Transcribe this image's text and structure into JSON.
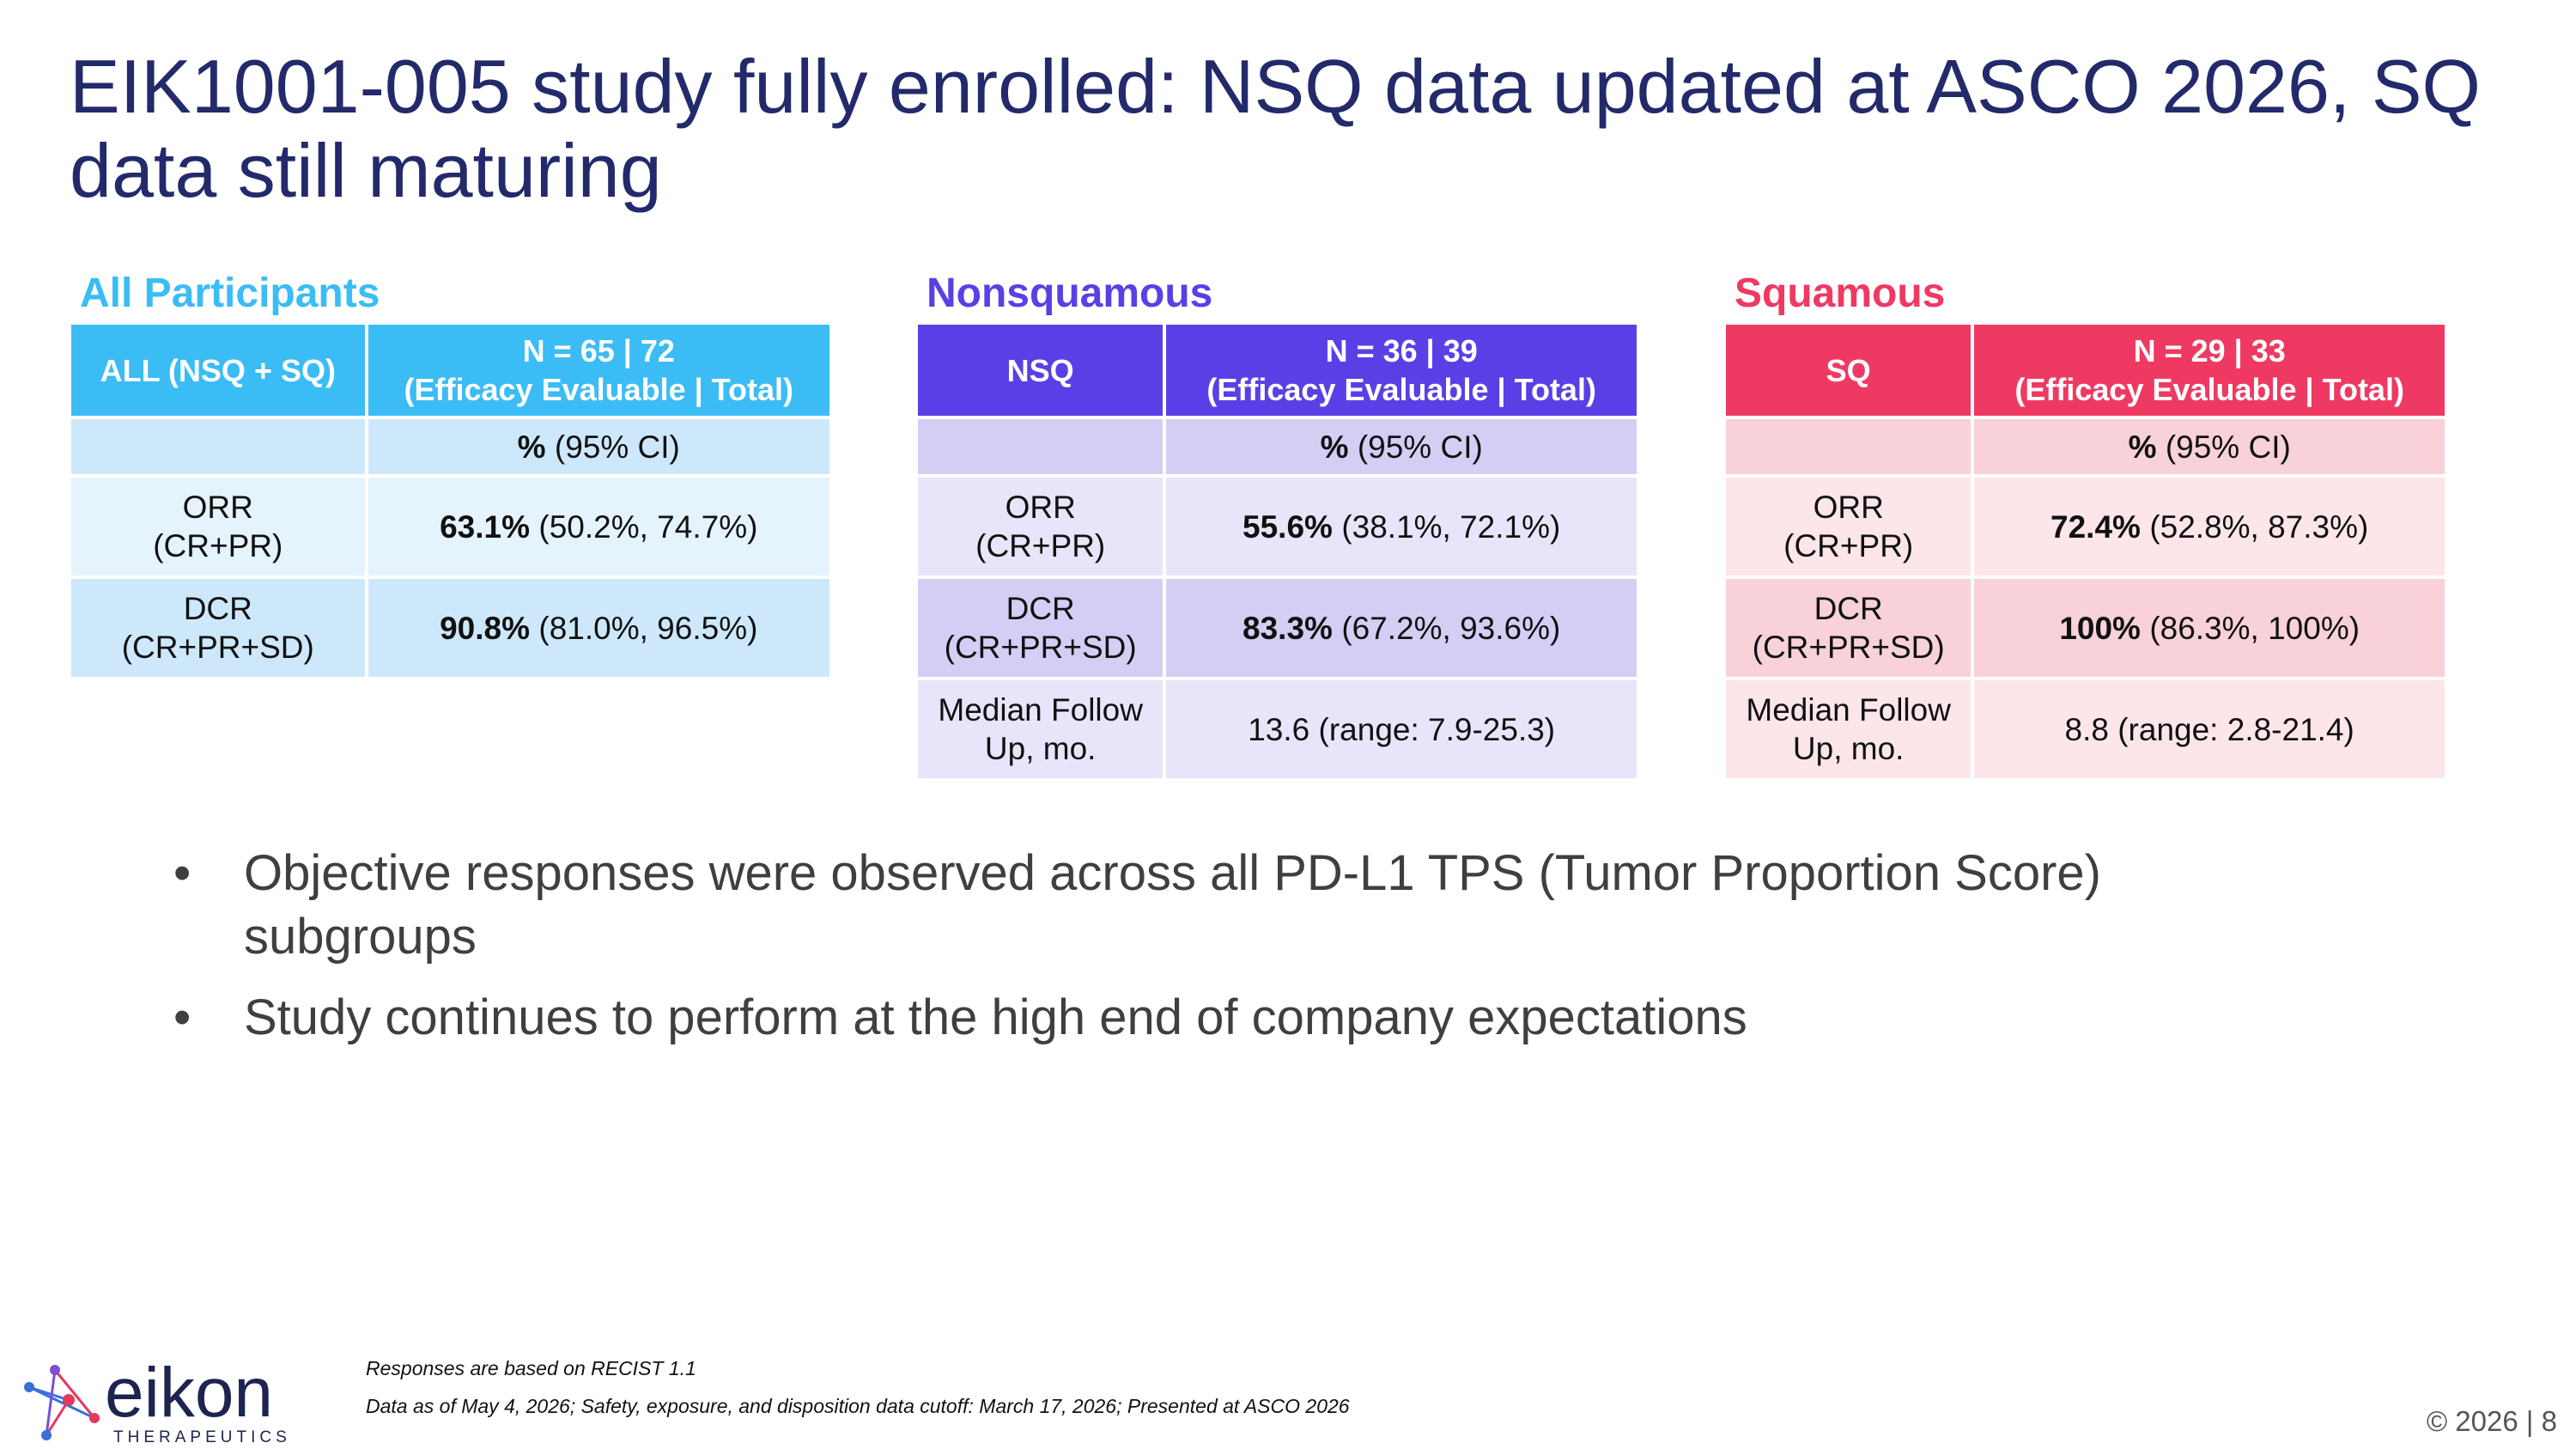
{
  "title": "EIK1001-005 study fully enrolled: NSQ data updated at ASCO 2026, SQ data still maturing",
  "tables": [
    {
      "heading": "All Participants",
      "header": {
        "label": "ALL (NSQ + SQ)",
        "n": "N = 65 | 72",
        "n_note": "(Efficacy Evaluable | Total)"
      },
      "subheader": {
        "bold": "%",
        "rest": "(95% CI)"
      },
      "rows": [
        {
          "label": [
            "ORR",
            "(CR+PR)"
          ],
          "value": {
            "bold": "63.1%",
            "rest": "(50.2%, 74.7%)"
          }
        },
        {
          "label": [
            "DCR",
            "(CR+PR+SD)"
          ],
          "value": {
            "bold": "90.8%",
            "rest": "(81.0%, 96.5%)"
          }
        }
      ]
    },
    {
      "heading": "Nonsquamous",
      "header": {
        "label": "NSQ",
        "n": "N = 36 | 39",
        "n_note": "(Efficacy Evaluable | Total)"
      },
      "subheader": {
        "bold": "%",
        "rest": "(95% CI)"
      },
      "rows": [
        {
          "label": [
            "ORR",
            "(CR+PR)"
          ],
          "value": {
            "bold": "55.6%",
            "rest": "(38.1%, 72.1%)"
          }
        },
        {
          "label": [
            "DCR",
            "(CR+PR+SD)"
          ],
          "value": {
            "bold": "83.3%",
            "rest": "(67.2%, 93.6%)"
          }
        },
        {
          "label": [
            "Median Follow",
            "Up, mo."
          ],
          "value": {
            "rest": "13.6 (range: 7.9-25.3)"
          }
        }
      ]
    },
    {
      "heading": "Squamous",
      "header": {
        "label": "SQ",
        "n": "N = 29 | 33",
        "n_note": "(Efficacy Evaluable | Total)"
      },
      "subheader": {
        "bold": "%",
        "rest": "(95% CI)"
      },
      "rows": [
        {
          "label": [
            "ORR",
            "(CR+PR)"
          ],
          "value": {
            "bold": "72.4%",
            "rest": "(52.8%, 87.3%)"
          }
        },
        {
          "label": [
            "DCR",
            "(CR+PR+SD)"
          ],
          "value": {
            "bold": "100%",
            "rest": "(86.3%, 100%)"
          }
        },
        {
          "label": [
            "Median Follow",
            "Up, mo."
          ],
          "value": {
            "rest": "8.8 (range: 2.8-21.4)"
          }
        }
      ]
    }
  ],
  "bullets": [
    "Objective responses were observed across all PD-L1 TPS (Tumor Proportion Score) subgroups",
    "Study continues to perform at the high end of company expectations"
  ],
  "footnotes": [
    "Responses are based on RECIST 1.1",
    "Data as of  May 4, 2026; Safety, exposure, and disposition data cutoff: March 17, 2026; Presented at ASCO 2026"
  ],
  "logo": {
    "name": "eikon",
    "tagline": "THERAPEUTICS"
  },
  "page": "© 2026 | 8"
}
